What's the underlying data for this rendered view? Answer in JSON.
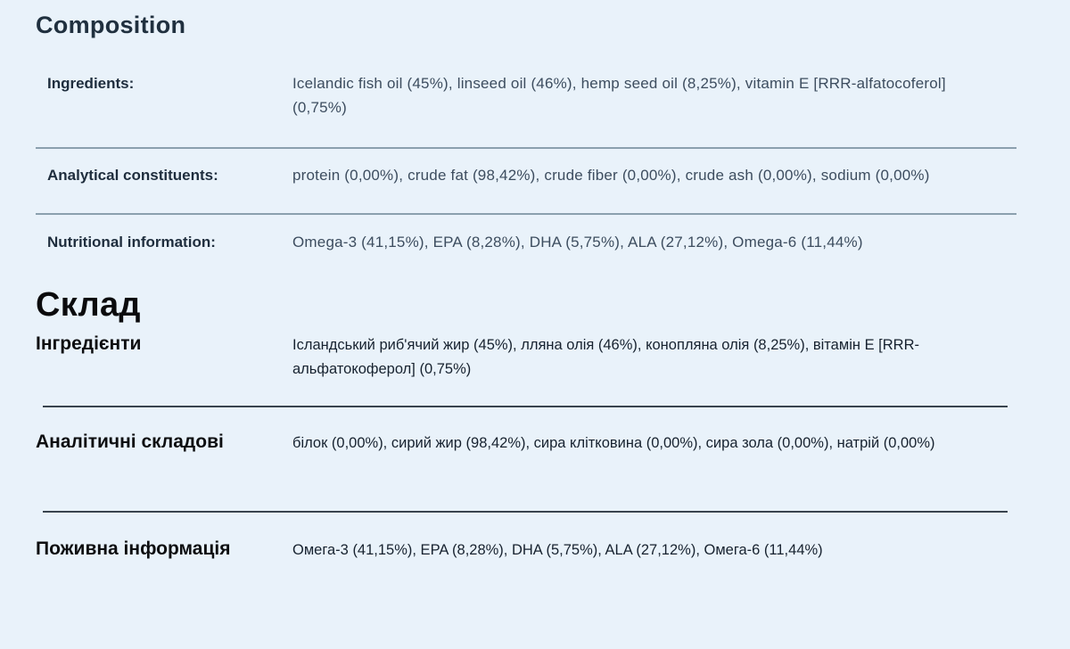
{
  "sections": {
    "en": {
      "title": "Composition",
      "rows": [
        {
          "label": "Ingredients:",
          "value": "Icelandic fish oil (45%), linseed oil (46%), hemp seed oil (8,25%), vitamin E [RRR-alfatocoferol] (0,75%)"
        },
        {
          "label": "Analytical constituents:",
          "value": "protein (0,00%), crude fat (98,42%), crude fiber (0,00%), crude ash (0,00%), sodium (0,00%)"
        },
        {
          "label": "Nutritional information:",
          "value": "Omega-3 (41,15%), EPA (8,28%), DHA (5,75%), ALA (27,12%), Omega-6 (11,44%)"
        }
      ]
    },
    "uk": {
      "title": "Склад",
      "rows": [
        {
          "label": "Інгредієнти",
          "value": "Ісландський риб'ячий жир (45%), лляна олія (46%), конопляна олія (8,25%), вітамін E [RRR-альфатокоферол] (0,75%)"
        },
        {
          "label": "Аналітичні складові",
          "value": "білок (0,00%), сирий жир (98,42%), сира клітковина (0,00%), сира зола (0,00%), натрій (0,00%)"
        },
        {
          "label": "Поживна інформація",
          "value": "Омега-3 (41,15%), EPA (8,28%), DHA (5,75%), ALA (27,12%), Омега-6 (11,44%)"
        }
      ]
    }
  },
  "colors": {
    "background": "#e9f2fa",
    "en_text": "#1e2d3d",
    "en_value_text": "#3d4d5f",
    "uk_text": "#0d0e10",
    "divider_light": "#8ba0ae",
    "divider_dark": "#39444e"
  }
}
